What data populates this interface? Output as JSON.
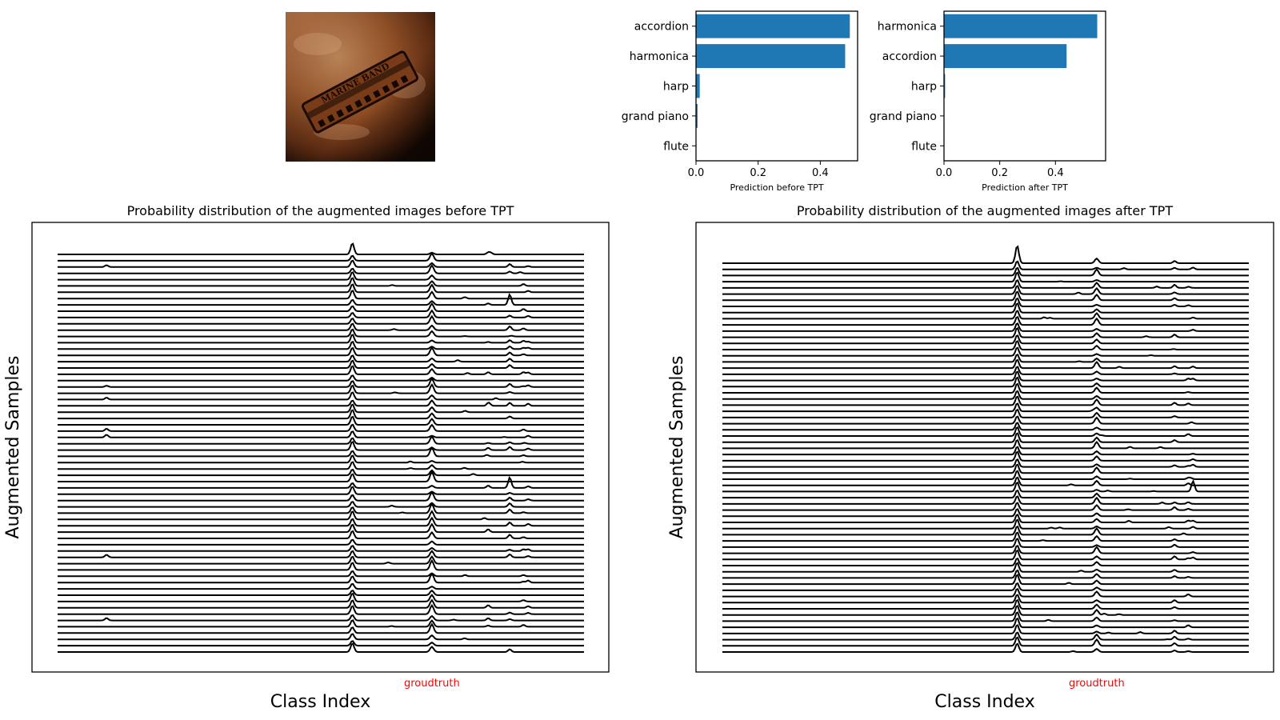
{
  "chart_data": [
    {
      "id": "before_bar",
      "type": "bar",
      "orientation": "horizontal",
      "categories": [
        "accordion",
        "harmonica",
        "harp",
        "grand piano",
        "flute"
      ],
      "values": [
        0.495,
        0.48,
        0.012,
        0.005,
        0.001
      ],
      "xlabel": "Prediction before TPT",
      "xlim": [
        0,
        0.52
      ],
      "xticks": [
        0.0,
        0.2,
        0.4
      ],
      "xtick_labels": [
        "0.0",
        "0.2",
        "0.4"
      ],
      "color": "#1f77b4"
    },
    {
      "id": "after_bar",
      "type": "bar",
      "orientation": "horizontal",
      "categories": [
        "harmonica",
        "accordion",
        "harp",
        "grand piano",
        "flute"
      ],
      "values": [
        0.55,
        0.44,
        0.004,
        0.001,
        0.001
      ],
      "xlabel": "Prediction after TPT",
      "xlim": [
        0,
        0.58
      ],
      "xticks": [
        0.0,
        0.2,
        0.4
      ],
      "xtick_labels": [
        "0.0",
        "0.2",
        "0.4"
      ],
      "color": "#1f77b4"
    },
    {
      "id": "ridge_before",
      "type": "line",
      "style": "ridgeline",
      "title": "Probability distribution of the augmented images before TPT",
      "xlabel": "Class Index",
      "ylabel": "Augmented Samples",
      "groundtruth_label": "groudtruth",
      "groundtruth_color": "#ff0000",
      "num_samples": 64,
      "x_range": [
        0,
        1000
      ],
      "peak_classes": [
        560,
        711,
        859,
        894,
        885,
        818,
        93
      ],
      "groundtruth_class": 711
    },
    {
      "id": "ridge_after",
      "type": "line",
      "style": "ridgeline",
      "title": "Probability distribution of the augmented images after TPT",
      "xlabel": "Class Index",
      "ylabel": "Augmented Samples",
      "groundtruth_label": "groudtruth",
      "groundtruth_color": "#ff0000",
      "num_samples": 64,
      "x_range": [
        0,
        1000
      ],
      "peak_classes": [
        560,
        711,
        859,
        894,
        885
      ],
      "groundtruth_class": 711
    }
  ],
  "image": {
    "subject": "harmonica photo",
    "engraved_text": "MARINE BAND",
    "colors": [
      "#4a2410",
      "#9c5a2e",
      "#c8875a",
      "#1a0c06"
    ]
  }
}
